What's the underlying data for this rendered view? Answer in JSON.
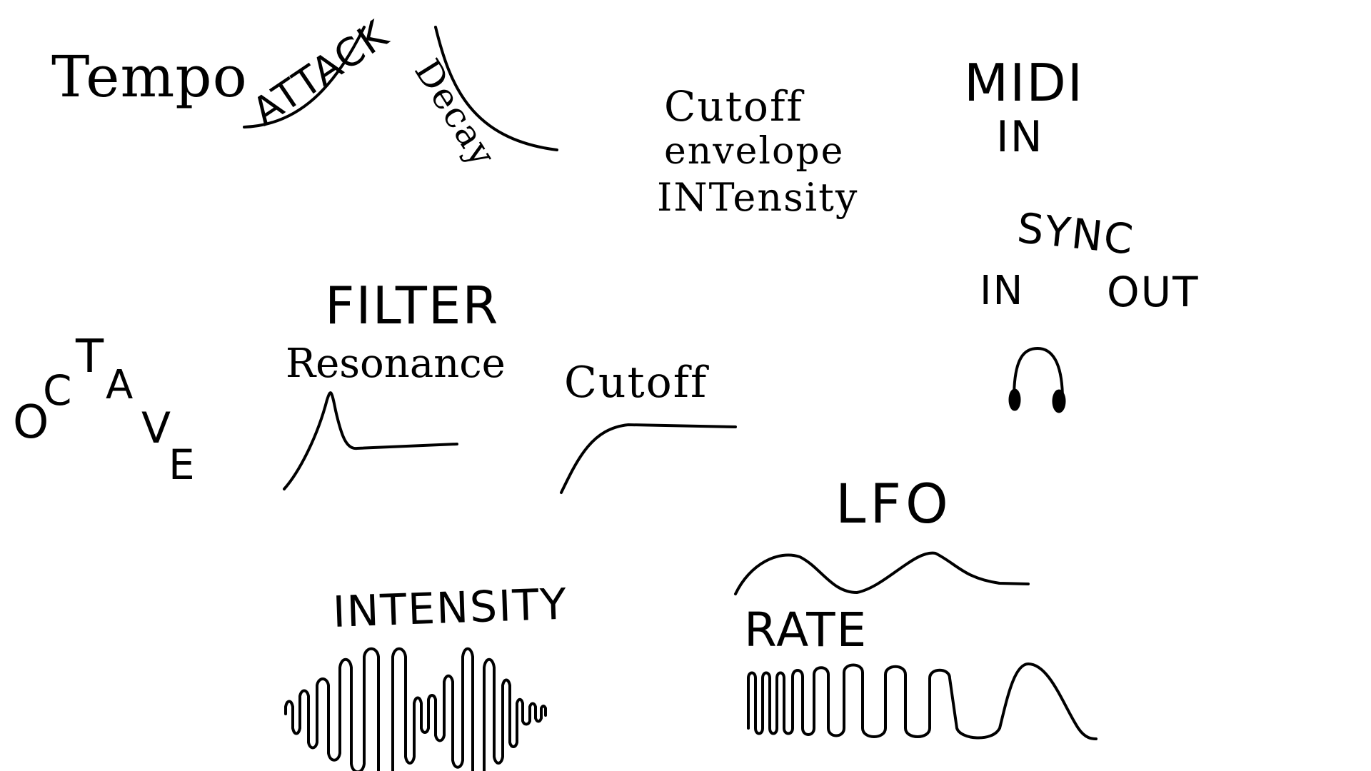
{
  "labels": {
    "tempo": "Tempo",
    "attack": "ATTACK",
    "decay": "Decay",
    "cutoff_env_line1": "Cutoff",
    "cutoff_env_line2": "envelope",
    "cutoff_env_line3": "INTensity",
    "midi_line1": "MIDI",
    "midi_line2": "IN",
    "sync": "SYNC",
    "sync_in": "IN",
    "sync_out": "OUT",
    "octave_letters": [
      "O",
      "C",
      "T",
      "A",
      "V",
      "E"
    ],
    "filter": "FILTER",
    "resonance": "Resonance",
    "cutoff": "Cutoff",
    "lfo": "LFO",
    "rate": "RATE",
    "intensity": "INTENSITY"
  },
  "icons": {
    "headphones": "headphones-icon"
  },
  "colors": {
    "ink": "#000000",
    "background": "#ffffff"
  }
}
